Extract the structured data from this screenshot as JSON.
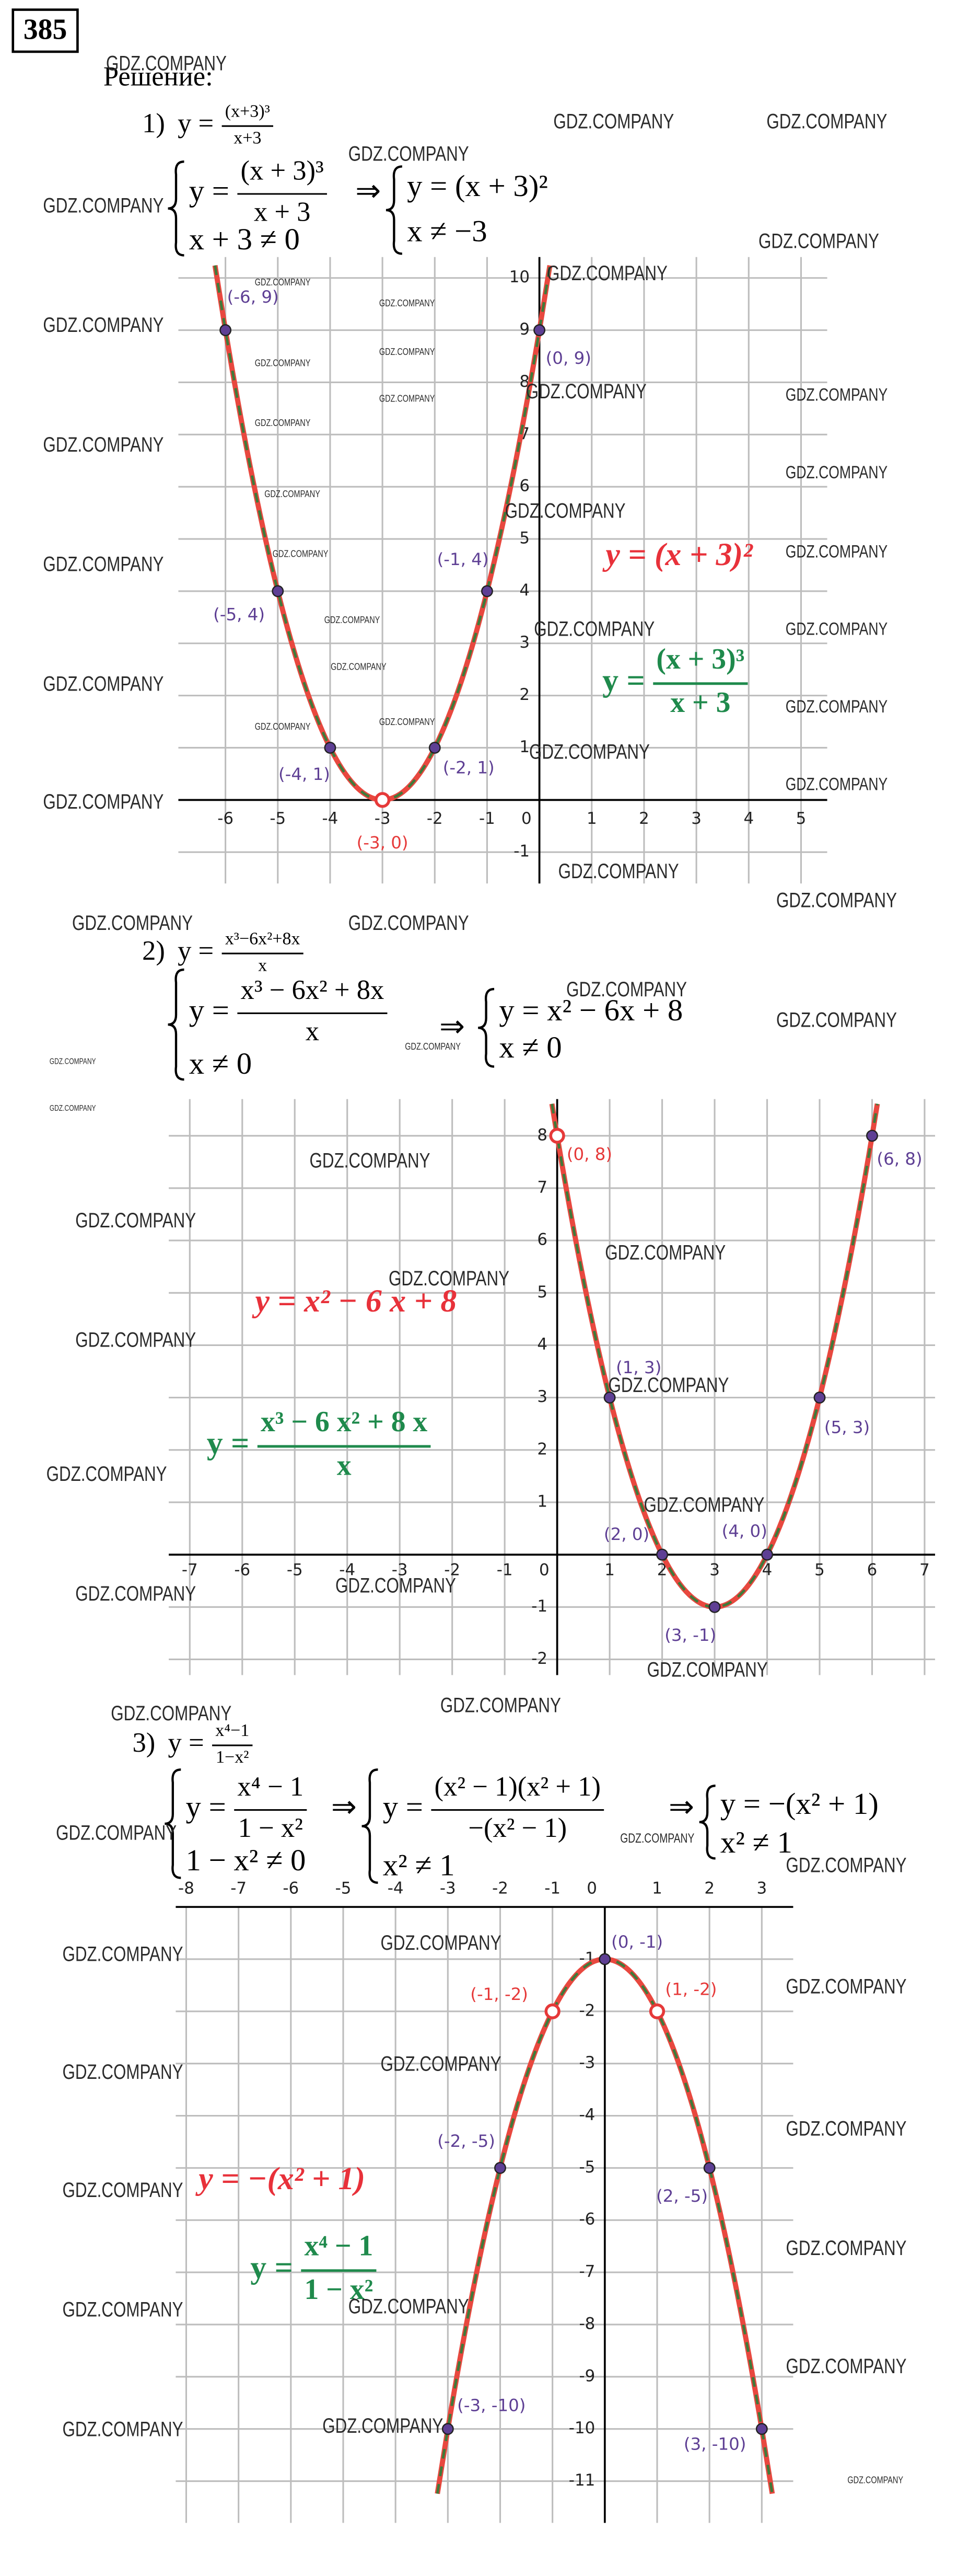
{
  "problem_number": "385",
  "solution_label": "Решение:",
  "implies": "⇒",
  "watermark": "GDZ.COMPANY",
  "point_colors": {
    "included": "#5e3f94",
    "excluded": "#e63939"
  },
  "parts": [
    {
      "number": "1)",
      "function": {
        "lhs": "y =",
        "num": "(x+3)³",
        "den": "x+3"
      },
      "systems": [
        [
          {
            "lhs": "y =",
            "num": "(x + 3)³",
            "den": "x + 3"
          },
          {
            "text": "x + 3 ≠ 0"
          }
        ],
        [
          {
            "text": "y = (x + 3)²"
          },
          {
            "text": "x ≠ −3"
          }
        ]
      ],
      "graph": {
        "xlim": [
          -6.9,
          5.5
        ],
        "ylim": [
          -1.6,
          10.4
        ],
        "xticks": [
          -6,
          -5,
          -4,
          -3,
          -2,
          -1,
          0,
          1,
          2,
          3,
          4,
          5
        ],
        "yticks": [
          -1,
          1,
          2,
          3,
          4,
          5,
          6,
          7,
          8,
          9,
          10
        ],
        "grid": true,
        "curve": {
          "x": [
            -6.2,
            -6,
            -5,
            -4,
            -3,
            -2,
            -1,
            0,
            0.2
          ],
          "y": [
            10.24,
            9,
            4,
            1,
            0,
            1,
            4,
            9,
            10.24
          ],
          "colors": [
            "#e8483f",
            "#3f7a3a"
          ]
        },
        "points": [
          {
            "x": -6,
            "y": 9,
            "label": "(-6, 9)",
            "excluded": false
          },
          {
            "x": 0,
            "y": 9,
            "label": "(0, 9)",
            "excluded": false
          },
          {
            "x": -5,
            "y": 4,
            "label": "(-5, 4)",
            "excluded": false
          },
          {
            "x": -1,
            "y": 4,
            "label": "(-1, 4)",
            "excluded": false
          },
          {
            "x": -4,
            "y": 1,
            "label": "(-4, 1)",
            "excluded": false
          },
          {
            "x": -2,
            "y": 1,
            "label": "(-2, 1)",
            "excluded": false
          },
          {
            "x": -3,
            "y": 0,
            "label": "(-3, 0)",
            "excluded": true
          }
        ],
        "formula_labels": [
          {
            "text": "y = (x + 3)²",
            "color": "#e8313a"
          },
          {
            "lhs": "y =",
            "num": "(x + 3)³",
            "den": "x + 3",
            "color": "#1f8a4c"
          }
        ]
      }
    },
    {
      "number": "2)",
      "function": {
        "lhs": "y =",
        "num": "x³−6x²+8x",
        "den": "x"
      },
      "systems": [
        [
          {
            "lhs": "y =",
            "num": "x³ − 6x² + 8x",
            "den": "x"
          },
          {
            "text": "x ≠ 0"
          }
        ],
        [
          {
            "text": "y = x² − 6x + 8"
          },
          {
            "text": "x ≠ 0"
          }
        ]
      ],
      "graph": {
        "xlim": [
          -7.4,
          7.2
        ],
        "ylim": [
          -2.3,
          8.7
        ],
        "xticks": [
          -7,
          -6,
          -5,
          -4,
          -3,
          -2,
          -1,
          0,
          1,
          2,
          3,
          4,
          5,
          6,
          7
        ],
        "yticks": [
          -2,
          -1,
          1,
          2,
          3,
          4,
          5,
          6,
          7,
          8
        ],
        "grid": true,
        "curve": {
          "x": [
            -0.1,
            0,
            1,
            2,
            3,
            4,
            5,
            6,
            6.1
          ],
          "y": [
            8.61,
            8,
            3,
            0,
            -1,
            0,
            3,
            8,
            8.61
          ],
          "colors": [
            "#e8483f",
            "#3f7a3a"
          ]
        },
        "points": [
          {
            "x": 0,
            "y": 8,
            "label": "(0, 8)",
            "excluded": true
          },
          {
            "x": 1,
            "y": 3,
            "label": "(1, 3)",
            "excluded": false
          },
          {
            "x": 2,
            "y": 0,
            "label": "(2, 0)",
            "excluded": false
          },
          {
            "x": 3,
            "y": -1,
            "label": "(3, -1)",
            "excluded": false
          },
          {
            "x": 4,
            "y": 0,
            "label": "(4, 0)",
            "excluded": false
          },
          {
            "x": 5,
            "y": 3,
            "label": "(5, 3)",
            "excluded": false
          },
          {
            "x": 6,
            "y": 8,
            "label": "(6, 8)",
            "excluded": false
          }
        ],
        "formula_labels": [
          {
            "text": "y = x² − 6 x + 8",
            "color": "#e8313a"
          },
          {
            "lhs": "y =",
            "num": "x³ − 6 x² + 8 x",
            "den": "x",
            "color": "#1f8a4c"
          }
        ]
      }
    },
    {
      "number": "3)",
      "function": {
        "lhs": "y =",
        "num": "x⁴−1",
        "den": "1−x²"
      },
      "systems": [
        [
          {
            "lhs": "y =",
            "num": "x⁴ − 1",
            "den": "1 − x²"
          },
          {
            "text": "1 − x² ≠ 0"
          }
        ],
        [
          {
            "lhs": "y =",
            "num": "(x² − 1)(x² + 1)",
            "den": "−(x² − 1)"
          },
          {
            "text": "x² ≠ 1"
          }
        ],
        [
          {
            "text": "y = −(x² + 1)"
          },
          {
            "text": "x² ≠ 1"
          }
        ]
      ],
      "graph": {
        "xlim": [
          -8.2,
          3.6
        ],
        "ylim": [
          -11.8,
          0
        ],
        "xticks": [
          -8,
          -7,
          -6,
          -5,
          -4,
          -3,
          -2,
          -1,
          0,
          1,
          2,
          3
        ],
        "yticks": [
          -1,
          -2,
          -3,
          -4,
          -5,
          -6,
          -7,
          -8,
          -9,
          -10,
          -11
        ],
        "grid": true,
        "curve": {
          "x": [
            -3.2,
            -3,
            -2,
            -1,
            0,
            1,
            2,
            3,
            3.2
          ],
          "y": [
            -11.24,
            -10,
            -5,
            -2,
            -1,
            -2,
            -5,
            -10,
            -11.24
          ],
          "colors": [
            "#e8483f",
            "#3f7a3a"
          ]
        },
        "points": [
          {
            "x": 0,
            "y": -1,
            "label": "(0, -1)",
            "excluded": false
          },
          {
            "x": -1,
            "y": -2,
            "label": "(-1, -2)",
            "excluded": true
          },
          {
            "x": 1,
            "y": -2,
            "label": "(1, -2)",
            "excluded": true
          },
          {
            "x": -2,
            "y": -5,
            "label": "(-2, -5)",
            "excluded": false
          },
          {
            "x": 2,
            "y": -5,
            "label": "(2, -5)",
            "excluded": false
          },
          {
            "x": -3,
            "y": -10,
            "label": "(-3, -10)",
            "excluded": false
          },
          {
            "x": 3,
            "y": -10,
            "label": "(3, -10)",
            "excluded": false
          }
        ],
        "formula_labels": [
          {
            "text": "y = −(x² + 1)",
            "color": "#e8313a"
          },
          {
            "lhs": "y =",
            "num": "x⁴ − 1",
            "den": "1 − x²",
            "color": "#1f8a4c"
          }
        ]
      }
    }
  ]
}
